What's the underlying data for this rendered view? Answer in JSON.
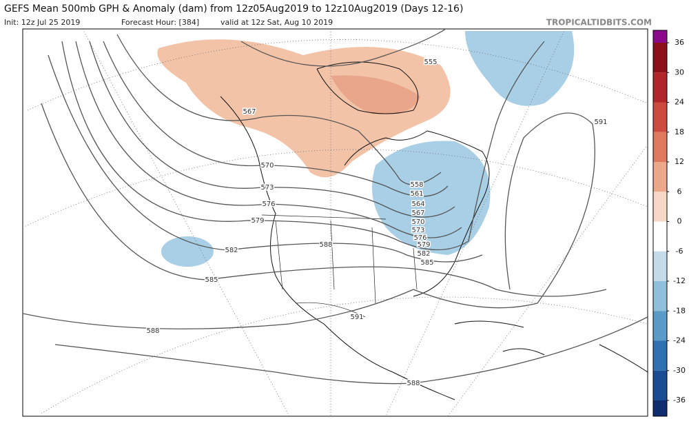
{
  "header": {
    "title": "GEFS Mean 500mb GPH & Anomaly (dam) from 12z05Aug2019 to 12z10Aug2019 (Days 12-16)",
    "init": "Init: 12z Jul 25 2019",
    "forecast_hour": "Forecast Hour: [384]",
    "valid": "valid at 12z Sat, Aug 10 2019",
    "source": "TROPICALTIDBITS.COM"
  },
  "colorbar": {
    "levels": [
      36,
      30,
      24,
      18,
      12,
      6,
      0,
      -6,
      -12,
      -18,
      -24,
      -30,
      -36
    ],
    "colors": [
      "#8b0a8b",
      "#8c1018",
      "#b0262a",
      "#cc4a3e",
      "#dd7a5e",
      "#eda78a",
      "#f7d7c6",
      "#ffffff",
      "#c4dcea",
      "#8fbfd9",
      "#5a9bc8",
      "#2f70b0",
      "#1a4c94",
      "#0f2c6e"
    ]
  },
  "contour_labels": [
    "555",
    "567",
    "570",
    "573",
    "576",
    "579",
    "582",
    "585",
    "588",
    "591",
    "558",
    "561",
    "564",
    "567",
    "570",
    "573",
    "576",
    "579",
    "582",
    "585",
    "588",
    "591",
    "588"
  ]
}
